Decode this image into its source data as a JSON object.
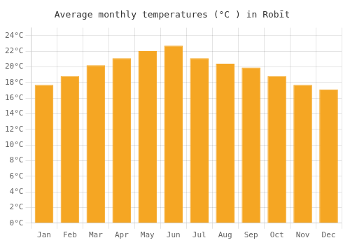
{
  "chart_data": {
    "type": "bar",
    "title": "Average monthly temperatures (°C ) in Robīt",
    "categories": [
      "Jan",
      "Feb",
      "Mar",
      "Apr",
      "May",
      "Jun",
      "Jul",
      "Aug",
      "Sep",
      "Oct",
      "Nov",
      "Dec"
    ],
    "values": [
      17.7,
      18.8,
      20.2,
      21.1,
      22.0,
      22.7,
      21.1,
      20.4,
      19.9,
      18.8,
      17.7,
      17.1
    ],
    "color": "#F5A623",
    "ylim": [
      0,
      25
    ],
    "yticks": [
      {
        "value": 0,
        "label": "0°C"
      },
      {
        "value": 2,
        "label": "2°C"
      },
      {
        "value": 4,
        "label": "4°C"
      },
      {
        "value": 6,
        "label": "6°C"
      },
      {
        "value": 8,
        "label": "8°C"
      },
      {
        "value": 10,
        "label": "10°C"
      },
      {
        "value": 12,
        "label": "12°C"
      },
      {
        "value": 14,
        "label": "14°C"
      },
      {
        "value": 16,
        "label": "16°C"
      },
      {
        "value": 18,
        "label": "18°C"
      },
      {
        "value": 20,
        "label": "20°C"
      },
      {
        "value": 22,
        "label": "22°C"
      },
      {
        "value": 24,
        "label": "24°C"
      }
    ],
    "grid": true
  }
}
